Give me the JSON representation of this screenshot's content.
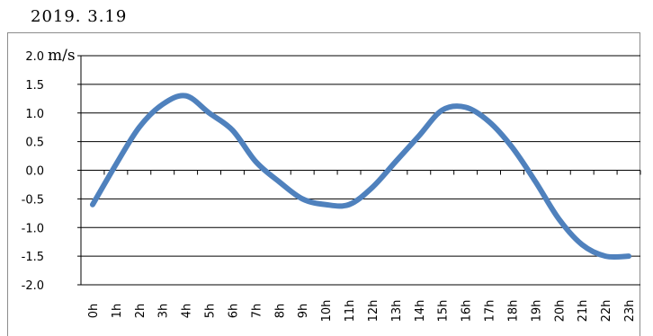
{
  "header": {
    "date": "2019. 3.19"
  },
  "chart_data": {
    "type": "line",
    "title": "",
    "xlabel": "",
    "ylabel": "m/s",
    "ylim": [
      -2.0,
      2.0
    ],
    "yticks": [
      "2.0",
      "1.5",
      "1.0",
      "0.5",
      "0.0",
      "-0.5",
      "-1.0",
      "-1.5",
      "-2.0"
    ],
    "grid": "horizontal",
    "line_color": "#4f81bd",
    "categories": [
      "0h",
      "1h",
      "2h",
      "3h",
      "4h",
      "5h",
      "6h",
      "7h",
      "8h",
      "9h",
      "10h",
      "11h",
      "12h",
      "13h",
      "14h",
      "15h",
      "16h",
      "17h",
      "18h",
      "19h",
      "20h",
      "21h",
      "22h",
      "23h"
    ],
    "series": [
      {
        "values": [
          -0.6,
          0.1,
          0.75,
          1.15,
          1.3,
          1.0,
          0.7,
          0.15,
          -0.2,
          -0.5,
          -0.6,
          -0.6,
          -0.3,
          0.15,
          0.6,
          1.05,
          1.1,
          0.85,
          0.4,
          -0.2,
          -0.85,
          -1.3,
          -1.5,
          -1.5
        ]
      }
    ]
  }
}
